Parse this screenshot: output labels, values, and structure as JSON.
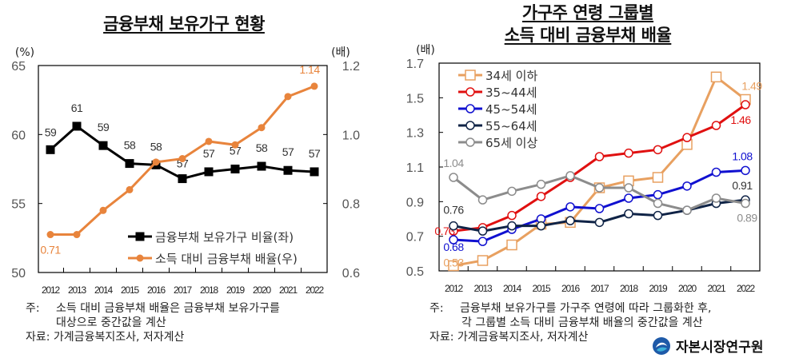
{
  "chart_data": [
    {
      "type": "line",
      "title": "금융부채 보유가구 현황",
      "x": [
        2012,
        2013,
        2014,
        2015,
        2016,
        2017,
        2018,
        2019,
        2020,
        2021,
        2022
      ],
      "y_left": {
        "unit": "(%)",
        "lim": [
          50,
          65
        ],
        "ticks": [
          "50",
          "55",
          "60",
          "65"
        ]
      },
      "y_right": {
        "unit": "(배)",
        "lim": [
          0.6,
          1.2
        ],
        "ticks": [
          "0.6",
          "0.8",
          "1.0",
          "1.2"
        ]
      },
      "legend": "bottom-right",
      "series": [
        {
          "name": "금융부채 보유가구 비율(좌)",
          "axis": "left",
          "color": "#000000",
          "marker": "square-filled",
          "values": [
            58.9,
            60.6,
            59.2,
            57.9,
            57.8,
            56.8,
            57.3,
            57.5,
            57.7,
            57.4,
            57.3
          ],
          "labels": [
            "59",
            "61",
            "59",
            "58",
            "58",
            "57",
            "57",
            "57",
            "58",
            "57",
            "57"
          ]
        },
        {
          "name": "소득 대비 금융부채 배율(우)",
          "axis": "right",
          "color": "#E8843C",
          "marker": "circle-filled",
          "values": [
            0.71,
            0.71,
            0.78,
            0.84,
            0.92,
            0.93,
            0.98,
            0.97,
            1.02,
            1.11,
            1.14
          ],
          "labels": [
            "0.71",
            "",
            "",
            "",
            "",
            "",
            "",
            "",
            "",
            "",
            "1.14"
          ]
        }
      ]
    },
    {
      "type": "line",
      "title": "가구주 연령 그룹별 소득 대비 금융부채 배율",
      "title_lines": [
        "가구주 연령 그룹별",
        "소득 대비 금융부채 배율"
      ],
      "x": [
        2012,
        2013,
        2014,
        2015,
        2016,
        2017,
        2018,
        2019,
        2020,
        2021,
        2022
      ],
      "y": {
        "unit": "(배)",
        "lim": [
          0.5,
          1.7
        ],
        "ticks": [
          "0.5",
          "0.7",
          "0.9",
          "1.1",
          "1.3",
          "1.5",
          "1.7"
        ]
      },
      "legend": "top-left",
      "series": [
        {
          "name": "34세 이하",
          "color": "#E8A060",
          "marker": "square-open",
          "values": [
            0.53,
            0.56,
            0.65,
            0.77,
            0.78,
            0.98,
            1.02,
            1.04,
            1.23,
            1.62,
            1.49
          ],
          "labels": [
            "0.53",
            "",
            "",
            "",
            "",
            "",
            "",
            "",
            "",
            "",
            "1.49"
          ]
        },
        {
          "name": "35~44세",
          "color": "#E01010",
          "marker": "circle-open",
          "values": [
            0.73,
            0.75,
            0.82,
            0.93,
            1.04,
            1.16,
            1.18,
            1.2,
            1.27,
            1.34,
            1.46
          ],
          "labels": [
            "0.73",
            "",
            "",
            "",
            "",
            "",
            "",
            "",
            "",
            "",
            "1.46"
          ]
        },
        {
          "name": "45~54세",
          "color": "#1010D0",
          "marker": "circle-open",
          "values": [
            0.68,
            0.67,
            0.74,
            0.8,
            0.87,
            0.86,
            0.92,
            0.94,
            0.99,
            1.07,
            1.08
          ],
          "labels": [
            "0.68",
            "",
            "",
            "",
            "",
            "",
            "",
            "",
            "",
            "",
            "1.08"
          ]
        },
        {
          "name": "55~64세",
          "color": "#0F2346",
          "marker": "circle-open",
          "values": [
            0.76,
            0.73,
            0.76,
            0.76,
            0.79,
            0.78,
            0.83,
            0.82,
            0.85,
            0.89,
            0.91
          ],
          "labels": [
            "0.76",
            "",
            "",
            "",
            "",
            "",
            "",
            "",
            "",
            "",
            "0.91"
          ]
        },
        {
          "name": "65세 이상",
          "color": "#8C8C8C",
          "marker": "circle-open",
          "values": [
            1.04,
            0.91,
            0.96,
            1.0,
            1.05,
            0.98,
            0.98,
            0.89,
            0.85,
            0.92,
            0.89
          ],
          "labels": [
            "1.04",
            "",
            "",
            "",
            "",
            "",
            "",
            "",
            "",
            "",
            "0.89"
          ]
        }
      ]
    }
  ],
  "titles": {
    "left": "금융부채 보유가구 현황",
    "right_line1": "가구주 연령 그룹별",
    "right_line2": "소득 대비 금융부채 배율"
  },
  "notes": {
    "left_prefix": "주:",
    "left_line1": "소득 대비 금융부채 배율은 금융부채 보유가구를",
    "left_line2": "대상으로 중간값을 계산",
    "left_source": "자료: 가계금융복지조사, 저자계산",
    "right_prefix": "주:",
    "right_line1": "금융부채 보유가구를 가구주 연령에 따라 그룹화한 후,",
    "right_line2": "각 그룹별 소득 대비 금융부채 배율의 중간값을 계산",
    "right_source": "자료: 가계금융복지조사, 저자계산"
  },
  "logo": {
    "text": "자본시장연구원",
    "colors": [
      "#1E5AA8",
      "#3CB0D8"
    ]
  }
}
